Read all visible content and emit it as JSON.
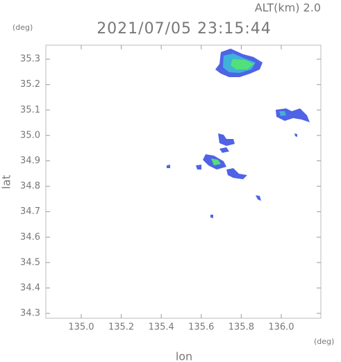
{
  "chart_data": {
    "type": "map",
    "title": "2021/07/05 23:15:44",
    "subtitle": "ALT(km)  2.0",
    "xlabel": "lon",
    "ylabel": "lat",
    "x_unit": "(deg)",
    "y_unit": "(deg)",
    "xlim": [
      134.823,
      136.198
    ],
    "ylim": [
      34.281,
      35.355
    ],
    "xticks": [
      {
        "value": 135,
        "label": "135.0"
      },
      135.2,
      135.4,
      135.6,
      135.8,
      {
        "value": 136,
        "label": "136.0"
      }
    ],
    "yticks": [
      34.3,
      34.4,
      34.5,
      34.6,
      34.7,
      34.8,
      34.9,
      {
        "value": 35,
        "label": "35.0"
      },
      35.1,
      35.2,
      35.3
    ]
  }
}
